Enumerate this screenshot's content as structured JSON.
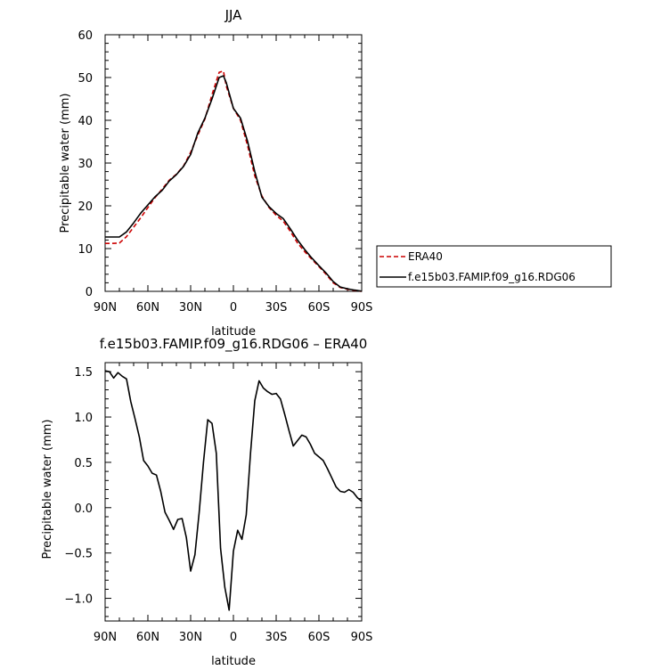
{
  "chart_data": [
    {
      "type": "line",
      "title": "JJA",
      "xlabel": "latitude",
      "ylabel": "Precipitable water (mm)",
      "x_tick_labels": [
        "90N",
        "60N",
        "30N",
        "0",
        "30S",
        "60S",
        "90S"
      ],
      "x_tick_values": [
        90,
        60,
        30,
        0,
        -30,
        -60,
        -90
      ],
      "y_ticks": [
        0,
        10,
        20,
        30,
        40,
        50,
        60
      ],
      "xlim": [
        90,
        -90
      ],
      "ylim": [
        0,
        60
      ],
      "legend_position": "right",
      "series": [
        {
          "name": "ERA40",
          "color": "#cc0000",
          "style": "dashed",
          "x": [
            90,
            85,
            80,
            75,
            70,
            65,
            60,
            55,
            50,
            45,
            40,
            35,
            30,
            25,
            20,
            15,
            10,
            7,
            5,
            0,
            -5,
            -10,
            -15,
            -20,
            -25,
            -30,
            -35,
            -40,
            -45,
            -50,
            -55,
            -60,
            -65,
            -70,
            -75,
            -80,
            -85,
            -90
          ],
          "y": [
            11.2,
            11.2,
            11.3,
            12.8,
            15.0,
            17.2,
            19.6,
            21.9,
            23.9,
            26.0,
            27.4,
            29.3,
            32.5,
            36.5,
            40.3,
            46.0,
            51.2,
            51.5,
            48.0,
            42.8,
            40.0,
            34.0,
            27.0,
            22.3,
            19.6,
            17.8,
            16.4,
            14.0,
            11.3,
            9.3,
            7.5,
            5.8,
            4.0,
            2.0,
            0.9,
            0.5,
            0.2,
            0.0
          ]
        },
        {
          "name": "f.e15b03.FAMIP.f09_g16.RDG06",
          "color": "#000000",
          "style": "solid",
          "x": [
            90,
            85,
            80,
            75,
            70,
            65,
            60,
            55,
            50,
            45,
            40,
            35,
            30,
            25,
            20,
            15,
            10,
            7,
            5,
            0,
            -5,
            -10,
            -15,
            -20,
            -25,
            -30,
            -35,
            -40,
            -45,
            -50,
            -55,
            -60,
            -65,
            -70,
            -75,
            -80,
            -85,
            -90
          ],
          "y": [
            12.7,
            12.7,
            12.7,
            13.9,
            16.0,
            18.3,
            20.2,
            22.1,
            23.6,
            25.8,
            27.3,
            29.2,
            32.0,
            37.0,
            40.5,
            45.0,
            50.0,
            50.4,
            48.8,
            42.8,
            40.5,
            35.0,
            28.0,
            22.0,
            19.8,
            18.2,
            17.0,
            14.6,
            12.0,
            9.8,
            7.8,
            6.0,
            4.3,
            2.3,
            1.0,
            0.6,
            0.3,
            0.05
          ]
        }
      ]
    },
    {
      "type": "line",
      "title": "f.e15b03.FAMIP.f09_g16.RDG06 – ERA40",
      "xlabel": "latitude",
      "ylabel": "Precipitable water (mm)",
      "x_tick_labels": [
        "90N",
        "60N",
        "30N",
        "0",
        "30S",
        "60S",
        "90S"
      ],
      "x_tick_values": [
        90,
        60,
        30,
        0,
        -30,
        -60,
        -90
      ],
      "y_ticks": [
        -1.0,
        -0.5,
        0.0,
        0.5,
        1.0,
        1.5
      ],
      "y_tick_labels": [
        "−1.0",
        "−0.5",
        "0.0",
        "0.5",
        "1.0",
        "1.5"
      ],
      "xlim": [
        90,
        -90
      ],
      "ylim": [
        -1.25,
        1.6
      ],
      "series": [
        {
          "name": "",
          "color": "#000000",
          "style": "solid",
          "x": [
            90,
            87,
            84,
            81,
            78,
            75,
            72,
            69,
            66,
            63,
            60,
            57,
            54,
            51,
            48,
            45,
            42,
            39,
            36,
            33,
            30,
            27,
            24,
            21,
            18,
            15,
            12,
            9,
            6,
            3,
            0,
            -3,
            -6,
            -9,
            -12,
            -15,
            -18,
            -21,
            -24,
            -27,
            -30,
            -33,
            -36,
            -39,
            -42,
            -45,
            -48,
            -51,
            -54,
            -57,
            -60,
            -63,
            -66,
            -69,
            -72,
            -75,
            -78,
            -81,
            -84,
            -87,
            -90
          ],
          "y": [
            1.51,
            1.5,
            1.43,
            1.49,
            1.45,
            1.42,
            1.17,
            0.98,
            0.78,
            0.52,
            0.46,
            0.38,
            0.36,
            0.18,
            -0.05,
            -0.14,
            -0.24,
            -0.13,
            -0.12,
            -0.33,
            -0.7,
            -0.52,
            -0.05,
            0.5,
            0.97,
            0.93,
            0.6,
            -0.45,
            -0.88,
            -1.13,
            -0.48,
            -0.25,
            -0.35,
            -0.08,
            0.6,
            1.18,
            1.4,
            1.32,
            1.28,
            1.25,
            1.26,
            1.2,
            1.03,
            0.85,
            0.68,
            0.74,
            0.8,
            0.78,
            0.7,
            0.6,
            0.56,
            0.52,
            0.43,
            0.33,
            0.23,
            0.18,
            0.17,
            0.2,
            0.17,
            0.11,
            0.07
          ]
        }
      ]
    }
  ]
}
